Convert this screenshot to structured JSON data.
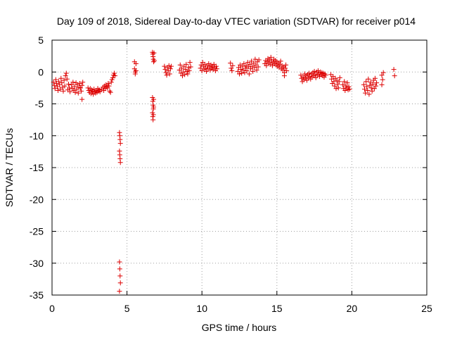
{
  "chart_data": {
    "type": "scatter",
    "title": "Day 109 of 2018, Sidereal Day-to-day VTEC variation (SDTVAR) for receiver p014",
    "xlabel": "GPS time / hours",
    "ylabel": "SDTVAR / TECUs",
    "xlim": [
      0,
      25
    ],
    "ylim": [
      -35,
      5
    ],
    "xticks": [
      0,
      5,
      10,
      15,
      20,
      25
    ],
    "yticks": [
      5,
      0,
      -5,
      -10,
      -15,
      -20,
      -25,
      -30,
      -35
    ],
    "grid": true,
    "marker": "+",
    "color": "#dd0000",
    "series": [
      {
        "name": "SDTVAR",
        "points": [
          [
            0.1,
            -1.6
          ],
          [
            0.15,
            -2.1
          ],
          [
            0.2,
            -2.6
          ],
          [
            0.25,
            -1.2
          ],
          [
            0.3,
            -1.8
          ],
          [
            0.35,
            -2.3
          ],
          [
            0.4,
            -2.9
          ],
          [
            0.45,
            -1.5
          ],
          [
            0.5,
            -2.0
          ],
          [
            0.55,
            -2.7
          ],
          [
            0.6,
            -1.0
          ],
          [
            0.65,
            -1.7
          ],
          [
            0.7,
            -2.4
          ],
          [
            0.75,
            -3.0
          ],
          [
            0.8,
            -1.3
          ],
          [
            0.85,
            -2.2
          ],
          [
            0.9,
            -0.6
          ],
          [
            0.95,
            -0.2
          ],
          [
            1.0,
            -1.1
          ],
          [
            1.05,
            -2.8
          ],
          [
            1.1,
            -1.9
          ],
          [
            1.15,
            -2.5
          ],
          [
            1.2,
            -3.1
          ],
          [
            1.3,
            -2.0
          ],
          [
            1.35,
            -2.6
          ],
          [
            1.4,
            -1.6
          ],
          [
            1.45,
            -2.9
          ],
          [
            1.5,
            -2.3
          ],
          [
            1.55,
            -3.2
          ],
          [
            1.6,
            -1.7
          ],
          [
            1.65,
            -2.7
          ],
          [
            1.7,
            -2.0
          ],
          [
            1.75,
            -3.3
          ],
          [
            1.8,
            -2.4
          ],
          [
            1.85,
            -1.8
          ],
          [
            1.9,
            -2.5
          ],
          [
            1.95,
            -3.0
          ],
          [
            2.0,
            -2.1
          ],
          [
            2.05,
            -1.6
          ],
          [
            2.0,
            -4.3
          ],
          [
            2.4,
            -2.5
          ],
          [
            2.45,
            -2.9
          ],
          [
            2.5,
            -3.2
          ],
          [
            2.55,
            -2.6
          ],
          [
            2.6,
            -3.4
          ],
          [
            2.65,
            -2.8
          ],
          [
            2.7,
            -3.0
          ],
          [
            2.75,
            -3.5
          ],
          [
            2.8,
            -2.7
          ],
          [
            2.85,
            -3.1
          ],
          [
            2.9,
            -3.3
          ],
          [
            2.95,
            -2.9
          ],
          [
            3.0,
            -3.2
          ],
          [
            3.05,
            -2.6
          ],
          [
            3.1,
            -3.0
          ],
          [
            3.15,
            -2.8
          ],
          [
            3.2,
            -3.1
          ],
          [
            3.3,
            -2.7
          ],
          [
            3.4,
            -2.4
          ],
          [
            3.45,
            -2.9
          ],
          [
            3.5,
            -2.2
          ],
          [
            3.55,
            -2.6
          ],
          [
            3.6,
            -2.0
          ],
          [
            3.65,
            -2.3
          ],
          [
            3.7,
            -2.5
          ],
          [
            3.75,
            -1.8
          ],
          [
            3.8,
            -2.2
          ],
          [
            3.85,
            -3.0
          ],
          [
            3.9,
            -3.2
          ],
          [
            3.95,
            -1.6
          ],
          [
            4.0,
            -1.2
          ],
          [
            4.05,
            -0.9
          ],
          [
            4.1,
            -0.5
          ],
          [
            4.15,
            -0.2
          ],
          [
            4.2,
            -0.6
          ],
          [
            4.5,
            -9.5
          ],
          [
            4.52,
            -10.0
          ],
          [
            4.54,
            -10.6
          ],
          [
            4.56,
            -11.2
          ],
          [
            4.5,
            -12.4
          ],
          [
            4.52,
            -13.0
          ],
          [
            4.54,
            -13.6
          ],
          [
            4.56,
            -14.2
          ],
          [
            4.5,
            -29.8
          ],
          [
            4.52,
            -30.9
          ],
          [
            4.54,
            -32.0
          ],
          [
            4.56,
            -33.1
          ],
          [
            4.5,
            -34.4
          ],
          [
            5.5,
            1.6
          ],
          [
            5.5,
            0.5
          ],
          [
            5.55,
            0.0
          ],
          [
            5.55,
            -0.3
          ],
          [
            5.6,
            1.3
          ],
          [
            5.6,
            0.2
          ],
          [
            6.7,
            3.1
          ],
          [
            6.72,
            2.8
          ],
          [
            6.74,
            2.4
          ],
          [
            6.76,
            2.0
          ],
          [
            6.78,
            1.6
          ],
          [
            6.8,
            3.0
          ],
          [
            6.82,
            1.8
          ],
          [
            6.7,
            -4.0
          ],
          [
            6.72,
            -4.6
          ],
          [
            6.74,
            -5.2
          ],
          [
            6.76,
            -5.8
          ],
          [
            6.7,
            -6.4
          ],
          [
            6.72,
            -7.0
          ],
          [
            6.74,
            -7.5
          ],
          [
            6.78,
            -4.3
          ],
          [
            6.78,
            -5.5
          ],
          [
            6.76,
            -6.7
          ],
          [
            7.5,
            0.9
          ],
          [
            7.55,
            0.4
          ],
          [
            7.6,
            -0.1
          ],
          [
            7.65,
            -0.5
          ],
          [
            7.7,
            0.7
          ],
          [
            7.75,
            0.2
          ],
          [
            7.8,
            1.0
          ],
          [
            7.85,
            -0.3
          ],
          [
            7.9,
            0.5
          ],
          [
            7.95,
            0.9
          ],
          [
            8.5,
            0.3
          ],
          [
            8.55,
            1.1
          ],
          [
            8.6,
            -0.2
          ],
          [
            8.65,
            0.6
          ],
          [
            8.7,
            -0.6
          ],
          [
            8.75,
            0.0
          ],
          [
            8.8,
            0.9
          ],
          [
            8.85,
            -0.4
          ],
          [
            8.9,
            0.4
          ],
          [
            8.95,
            1.2
          ],
          [
            9.0,
            0.1
          ],
          [
            9.05,
            -0.3
          ],
          [
            9.1,
            0.7
          ],
          [
            9.15,
            0.2
          ],
          [
            9.2,
            1.5
          ],
          [
            9.25,
            0.8
          ],
          [
            9.9,
            0.6
          ],
          [
            9.95,
            1.1
          ],
          [
            10.0,
            0.2
          ],
          [
            10.05,
            1.5
          ],
          [
            10.1,
            0.9
          ],
          [
            10.15,
            0.4
          ],
          [
            10.2,
            1.2
          ],
          [
            10.25,
            0.6
          ],
          [
            10.3,
            0.1
          ],
          [
            10.35,
            1.0
          ],
          [
            10.4,
            0.5
          ],
          [
            10.45,
            1.3
          ],
          [
            10.5,
            0.8
          ],
          [
            10.55,
            0.3
          ],
          [
            10.6,
            1.1
          ],
          [
            10.65,
            0.6
          ],
          [
            10.7,
            0.9
          ],
          [
            10.75,
            0.4
          ],
          [
            10.8,
            1.2
          ],
          [
            10.85,
            0.7
          ],
          [
            10.9,
            0.2
          ],
          [
            10.95,
            0.9
          ],
          [
            11.0,
            0.5
          ],
          [
            11.9,
            1.4
          ],
          [
            11.95,
            0.6
          ],
          [
            12.0,
            0.2
          ],
          [
            12.05,
            1.0
          ],
          [
            12.4,
            0.1
          ],
          [
            12.45,
            0.7
          ],
          [
            12.5,
            -0.3
          ],
          [
            12.55,
            1.1
          ],
          [
            12.6,
            0.4
          ],
          [
            12.65,
            -0.2
          ],
          [
            12.7,
            0.9
          ],
          [
            12.75,
            0.3
          ],
          [
            12.8,
            1.3
          ],
          [
            12.85,
            -0.1
          ],
          [
            12.9,
            0.6
          ],
          [
            12.95,
            1.0
          ],
          [
            13.0,
            0.2
          ],
          [
            13.05,
            1.5
          ],
          [
            13.1,
            0.8
          ],
          [
            13.15,
            -0.3
          ],
          [
            13.2,
            1.2
          ],
          [
            13.25,
            0.5
          ],
          [
            13.3,
            1.7
          ],
          [
            13.35,
            0.9
          ],
          [
            13.4,
            0.1
          ],
          [
            13.45,
            1.4
          ],
          [
            13.5,
            0.7
          ],
          [
            13.55,
            2.0
          ],
          [
            13.6,
            1.1
          ],
          [
            13.65,
            0.3
          ],
          [
            13.7,
            1.6
          ],
          [
            13.75,
            0.8
          ],
          [
            13.8,
            1.9
          ],
          [
            14.2,
            1.3
          ],
          [
            14.25,
            1.8
          ],
          [
            14.3,
            1.0
          ],
          [
            14.35,
            1.6
          ],
          [
            14.4,
            2.1
          ],
          [
            14.45,
            1.4
          ],
          [
            14.5,
            1.9
          ],
          [
            14.55,
            1.2
          ],
          [
            14.6,
            2.3
          ],
          [
            14.65,
            1.7
          ],
          [
            14.7,
            1.0
          ],
          [
            14.75,
            1.5
          ],
          [
            14.8,
            2.0
          ],
          [
            14.85,
            1.3
          ],
          [
            14.9,
            1.8
          ],
          [
            14.95,
            1.1
          ],
          [
            15.0,
            1.6
          ],
          [
            15.05,
            0.9
          ],
          [
            15.1,
            1.4
          ],
          [
            15.15,
            0.7
          ],
          [
            15.2,
            1.2
          ],
          [
            15.25,
            1.7
          ],
          [
            15.3,
            0.5
          ],
          [
            15.35,
            1.0
          ],
          [
            15.4,
            0.3
          ],
          [
            15.45,
            0.8
          ],
          [
            15.5,
            -0.1
          ],
          [
            15.55,
            0.6
          ],
          [
            15.6,
            1.1
          ],
          [
            15.65,
            0.2
          ],
          [
            15.5,
            -0.6
          ],
          [
            16.6,
            -0.5
          ],
          [
            16.65,
            -1.0
          ],
          [
            16.7,
            -1.5
          ],
          [
            16.75,
            -0.8
          ],
          [
            16.8,
            -1.2
          ],
          [
            16.85,
            -0.3
          ],
          [
            16.9,
            -1.0
          ],
          [
            16.95,
            -0.6
          ],
          [
            17.0,
            -1.3
          ],
          [
            17.05,
            -0.4
          ],
          [
            17.1,
            -0.9
          ],
          [
            17.15,
            -0.2
          ],
          [
            17.2,
            -0.7
          ],
          [
            17.25,
            -1.1
          ],
          [
            17.3,
            -0.3
          ],
          [
            17.35,
            -0.8
          ],
          [
            17.4,
            -0.1
          ],
          [
            17.45,
            -0.6
          ],
          [
            17.5,
            0.1
          ],
          [
            17.55,
            -0.4
          ],
          [
            17.6,
            -0.9
          ],
          [
            17.65,
            0.0
          ],
          [
            17.7,
            -0.5
          ],
          [
            17.75,
            0.2
          ],
          [
            17.8,
            -0.3
          ],
          [
            17.85,
            -0.7
          ],
          [
            17.9,
            0.0
          ],
          [
            17.95,
            -0.4
          ],
          [
            18.0,
            -0.1
          ],
          [
            18.05,
            -0.6
          ],
          [
            18.1,
            -0.2
          ],
          [
            18.15,
            -0.8
          ],
          [
            18.2,
            -0.3
          ],
          [
            18.25,
            -0.5
          ],
          [
            18.6,
            -0.4
          ],
          [
            18.65,
            -1.1
          ],
          [
            18.7,
            -1.8
          ],
          [
            18.75,
            -0.7
          ],
          [
            18.8,
            -1.5
          ],
          [
            18.85,
            -2.2
          ],
          [
            18.9,
            -1.0
          ],
          [
            18.95,
            -2.6
          ],
          [
            19.0,
            -1.3
          ],
          [
            19.05,
            -1.9
          ],
          [
            19.1,
            -2.5
          ],
          [
            19.15,
            -1.5
          ],
          [
            19.2,
            -0.9
          ],
          [
            19.4,
            -2.0
          ],
          [
            19.45,
            -2.6
          ],
          [
            19.5,
            -1.5
          ],
          [
            19.55,
            -2.9
          ],
          [
            19.6,
            -2.2
          ],
          [
            19.65,
            -2.5
          ],
          [
            19.7,
            -1.7
          ],
          [
            19.75,
            -2.8
          ],
          [
            19.8,
            -2.3
          ],
          [
            19.85,
            -2.7
          ],
          [
            20.8,
            -2.0
          ],
          [
            20.85,
            -2.7
          ],
          [
            20.9,
            -3.3
          ],
          [
            20.95,
            -1.5
          ],
          [
            21.0,
            -2.3
          ],
          [
            21.05,
            -2.9
          ],
          [
            21.1,
            -1.1
          ],
          [
            21.15,
            -3.5
          ],
          [
            21.2,
            -2.1
          ],
          [
            21.25,
            -1.6
          ],
          [
            21.3,
            -2.5
          ],
          [
            21.35,
            -3.0
          ],
          [
            21.4,
            -1.9
          ],
          [
            21.45,
            -1.3
          ],
          [
            21.5,
            -2.6
          ],
          [
            21.55,
            -1.0
          ],
          [
            21.6,
            -2.2
          ],
          [
            21.65,
            -1.7
          ],
          [
            22.0,
            -0.5
          ],
          [
            22.05,
            -1.2
          ],
          [
            22.0,
            -2.0
          ],
          [
            22.1,
            -0.1
          ],
          [
            22.8,
            0.4
          ],
          [
            22.85,
            -0.6
          ]
        ]
      }
    ]
  }
}
